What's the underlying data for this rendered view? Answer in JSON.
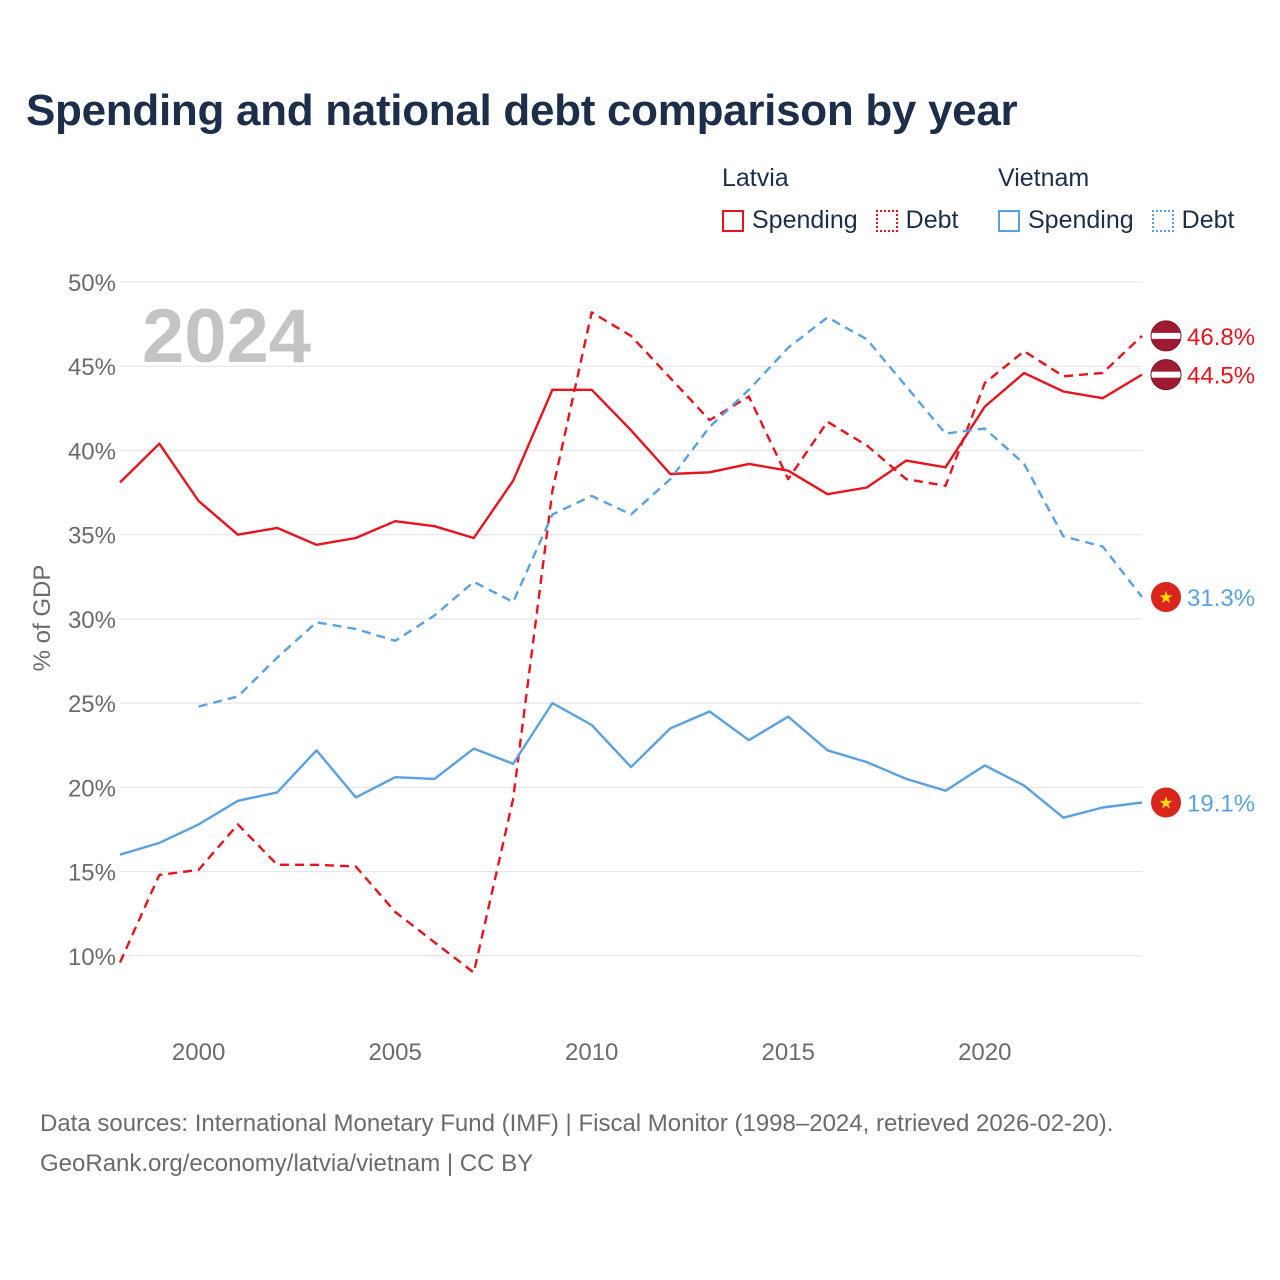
{
  "title": "Spending and national debt comparison by year",
  "legend": {
    "groups": [
      {
        "name": "Latvia",
        "items": [
          "Spending",
          "Debt"
        ]
      },
      {
        "name": "Vietnam",
        "items": [
          "Spending",
          "Debt"
        ]
      }
    ]
  },
  "year_watermark": "2024",
  "footer": {
    "line1": "Data sources: International Monetary Fund (IMF) | Fiscal Monitor (1998–2024, retrieved 2026-02-20).",
    "line2": "GeoRank.org/economy/latvia/vietnam | CC BY"
  },
  "colors": {
    "latvia": "#e8131c",
    "vietnam": "#5aa1e3",
    "title": "#1c2e4a",
    "grid": "#e6e6e6",
    "axis_text": "#6b6b6b"
  },
  "chart_data": {
    "type": "line",
    "title": "Spending and national debt comparison by year",
    "xlabel": "",
    "ylabel": "% of GDP",
    "xlim": [
      1998,
      2024
    ],
    "ylim": [
      5,
      50
    ],
    "x_ticks": [
      2000,
      2005,
      2010,
      2015,
      2020
    ],
    "y_ticks": [
      10,
      15,
      20,
      25,
      30,
      35,
      40,
      45,
      50
    ],
    "y_tick_labels": [
      "10%",
      "15%",
      "20%",
      "25%",
      "30%",
      "35%",
      "40%",
      "45%",
      "50%"
    ],
    "series": [
      {
        "name": "Latvia Spending",
        "country": "Latvia",
        "kind": "Spending",
        "style": "solid",
        "color": "#e8131c",
        "x": [
          1998,
          1999,
          2000,
          2001,
          2002,
          2003,
          2004,
          2005,
          2006,
          2007,
          2008,
          2009,
          2010,
          2011,
          2012,
          2013,
          2014,
          2015,
          2016,
          2017,
          2018,
          2019,
          2020,
          2021,
          2022,
          2023,
          2024
        ],
        "values": [
          38.1,
          40.4,
          37.0,
          35.0,
          35.4,
          34.4,
          34.8,
          35.8,
          35.5,
          34.8,
          38.2,
          43.6,
          43.6,
          41.2,
          38.6,
          38.7,
          39.2,
          38.8,
          37.4,
          37.8,
          39.4,
          39.0,
          42.6,
          44.6,
          43.5,
          43.1,
          44.5
        ],
        "end_label": "44.5%"
      },
      {
        "name": "Latvia Debt",
        "country": "Latvia",
        "kind": "Debt",
        "style": "dashed",
        "color": "#e8131c",
        "x": [
          1998,
          1999,
          2000,
          2001,
          2002,
          2003,
          2004,
          2005,
          2006,
          2007,
          2008,
          2009,
          2010,
          2011,
          2012,
          2013,
          2014,
          2015,
          2016,
          2017,
          2018,
          2019,
          2020,
          2021,
          2022,
          2023,
          2024
        ],
        "values": [
          9.6,
          14.8,
          15.1,
          17.8,
          15.4,
          15.4,
          15.3,
          12.6,
          10.8,
          9.0,
          19.3,
          37.6,
          48.2,
          46.8,
          44.3,
          41.8,
          43.2,
          38.3,
          41.7,
          40.3,
          38.3,
          37.9,
          44.0,
          45.9,
          44.4,
          44.6,
          46.8
        ],
        "end_label": "46.8%"
      },
      {
        "name": "Vietnam Spending",
        "country": "Vietnam",
        "kind": "Spending",
        "style": "solid",
        "color": "#5aa1e3",
        "x": [
          1998,
          1999,
          2000,
          2001,
          2002,
          2003,
          2004,
          2005,
          2006,
          2007,
          2008,
          2009,
          2010,
          2011,
          2012,
          2013,
          2014,
          2015,
          2016,
          2017,
          2018,
          2019,
          2020,
          2021,
          2022,
          2023,
          2024
        ],
        "values": [
          16.0,
          16.7,
          17.8,
          19.2,
          19.7,
          22.2,
          19.4,
          20.6,
          20.5,
          22.3,
          21.4,
          25.0,
          23.7,
          21.2,
          23.5,
          24.5,
          22.8,
          24.2,
          22.2,
          21.5,
          20.5,
          19.8,
          21.3,
          20.1,
          18.2,
          18.8,
          19.1
        ],
        "end_label": "19.1%"
      },
      {
        "name": "Vietnam Debt",
        "country": "Vietnam",
        "kind": "Debt",
        "style": "dashed",
        "color": "#5aa1e3",
        "x": [
          2000,
          2001,
          2002,
          2003,
          2004,
          2005,
          2006,
          2007,
          2008,
          2009,
          2010,
          2011,
          2012,
          2013,
          2014,
          2015,
          2016,
          2017,
          2018,
          2019,
          2020,
          2021,
          2022,
          2023,
          2024
        ],
        "values": [
          24.8,
          25.4,
          27.7,
          29.8,
          29.4,
          28.7,
          30.2,
          32.2,
          31.0,
          36.2,
          37.3,
          36.2,
          38.3,
          41.4,
          43.6,
          46.1,
          47.9,
          46.6,
          43.8,
          41.0,
          41.3,
          39.2,
          34.9,
          34.3,
          31.3
        ],
        "end_label": "31.3%"
      }
    ]
  }
}
